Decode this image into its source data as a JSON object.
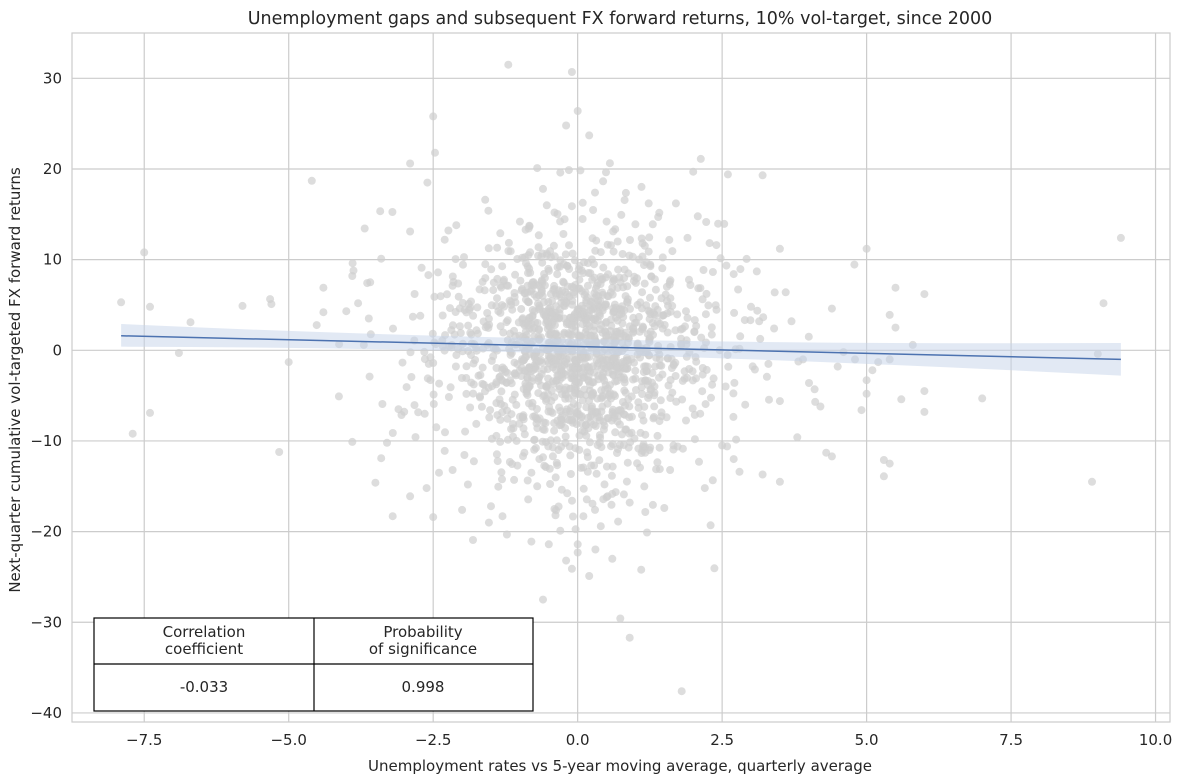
{
  "chart_data": {
    "type": "scatter",
    "title": "Unemployment gaps and subsequent FX forward returns, 10% vol-target, since 2000",
    "xlabel": "Unemployment rates vs 5-year moving average, quarterly average",
    "ylabel": "Next-quarter cumulative vol-targeted FX forward returns",
    "xlim": [
      -8.75,
      10.25
    ],
    "ylim": [
      -41,
      35
    ],
    "xticks": [
      -7.5,
      -5.0,
      -2.5,
      0.0,
      2.5,
      5.0,
      7.5,
      10.0
    ],
    "xtick_labels": [
      "−7.5",
      "−5.0",
      "−2.5",
      "0.0",
      "2.5",
      "5.0",
      "7.5",
      "10.0"
    ],
    "yticks": [
      -40,
      -30,
      -20,
      -10,
      0,
      10,
      20,
      30
    ],
    "ytick_labels": [
      "−40",
      "−30",
      "−20",
      "−10",
      "0",
      "10",
      "20",
      "30"
    ],
    "grid": true,
    "point_color": "#cfcfcf",
    "line_color": "#4c72b0",
    "band_color": "#c5d3ea",
    "regression": {
      "x_start": -7.9,
      "y_start": 1.6,
      "x_end": 9.4,
      "y_end": -1.0,
      "band_start": [
        0.4,
        2.9
      ],
      "band_end": [
        -2.8,
        0.8
      ],
      "center_x": 0.0,
      "center_halfwidth": 0.12
    },
    "points": [
      [
        -7.9,
        5.3
      ],
      [
        -7.5,
        10.8
      ],
      [
        -7.4,
        4.8
      ],
      [
        -7.7,
        -9.2
      ],
      [
        -7.4,
        -6.9
      ],
      [
        -6.9,
        -0.3
      ],
      [
        -6.7,
        3.1
      ],
      [
        -5.8,
        4.9
      ],
      [
        -5.3,
        5.1
      ],
      [
        -5.0,
        -1.3
      ],
      [
        -4.6,
        18.7
      ],
      [
        -4.4,
        6.9
      ],
      [
        -4.4,
        4.2
      ],
      [
        -3.9,
        8.2
      ],
      [
        -3.9,
        -10.1
      ],
      [
        -3.8,
        5.2
      ],
      [
        -3.7,
        0.6
      ],
      [
        -3.6,
        -2.9
      ],
      [
        -3.5,
        -14.6
      ],
      [
        -3.4,
        10.1
      ],
      [
        -3.4,
        -11.9
      ],
      [
        -3.3,
        -10.2
      ],
      [
        -3.2,
        -18.3
      ],
      [
        -3.1,
        -6.5
      ],
      [
        -2.9,
        20.6
      ],
      [
        -2.9,
        -16.1
      ],
      [
        -2.9,
        13.1
      ],
      [
        -2.6,
        18.5
      ],
      [
        -2.5,
        25.8
      ],
      [
        -2.5,
        -18.4
      ],
      [
        -2.4,
        -13.5
      ],
      [
        -2.3,
        -11.1
      ],
      [
        -2.3,
        12.2
      ],
      [
        -2.1,
        13.8
      ],
      [
        -2.0,
        -17.6
      ],
      [
        -1.9,
        -14.8
      ],
      [
        -1.6,
        16.6
      ],
      [
        -1.5,
        -17.2
      ],
      [
        -1.3,
        -18.3
      ],
      [
        -1.2,
        31.5
      ],
      [
        -1.1,
        -14.3
      ],
      [
        -1.0,
        14.2
      ],
      [
        -0.9,
        13.3
      ],
      [
        -0.8,
        -21.1
      ],
      [
        -0.8,
        -13.5
      ],
      [
        -0.7,
        20.1
      ],
      [
        -0.7,
        -15.0
      ],
      [
        -0.6,
        -27.5
      ],
      [
        -0.6,
        17.8
      ],
      [
        -0.5,
        -21.4
      ],
      [
        -0.4,
        -17.5
      ],
      [
        -0.4,
        15.2
      ],
      [
        -0.3,
        19.6
      ],
      [
        -0.3,
        -19.9
      ],
      [
        -0.2,
        24.8
      ],
      [
        -0.2,
        -23.2
      ],
      [
        -0.1,
        -24.1
      ],
      [
        -0.1,
        15.9
      ],
      [
        0.0,
        -22.3
      ],
      [
        -0.1,
        30.7
      ],
      [
        0.0,
        -21.4
      ],
      [
        0.0,
        26.4
      ],
      [
        0.1,
        -18.3
      ],
      [
        0.2,
        23.7
      ],
      [
        0.2,
        -24.9
      ],
      [
        0.3,
        -17.6
      ],
      [
        0.3,
        17.4
      ],
      [
        0.4,
        -19.4
      ],
      [
        0.5,
        -16.2
      ],
      [
        0.5,
        14.2
      ],
      [
        0.6,
        -23.0
      ],
      [
        0.7,
        -18.9
      ],
      [
        0.8,
        -15.9
      ],
      [
        0.9,
        -31.7
      ],
      [
        0.9,
        -16.8
      ],
      [
        1.0,
        13.9
      ],
      [
        1.1,
        -24.2
      ],
      [
        1.2,
        -20.1
      ],
      [
        1.3,
        13.9
      ],
      [
        1.5,
        -17.4
      ],
      [
        1.6,
        -13.2
      ],
      [
        1.7,
        16.2
      ],
      [
        1.8,
        -37.6
      ],
      [
        1.9,
        12.4
      ],
      [
        2.0,
        19.7
      ],
      [
        2.1,
        -12.3
      ],
      [
        2.2,
        -15.2
      ],
      [
        2.3,
        -19.3
      ],
      [
        2.4,
        11.6
      ],
      [
        2.5,
        -10.5
      ],
      [
        2.6,
        19.4
      ],
      [
        2.7,
        -12.0
      ],
      [
        2.7,
        8.4
      ],
      [
        2.8,
        -13.4
      ],
      [
        2.9,
        -6.0
      ],
      [
        3.0,
        4.8
      ],
      [
        3.1,
        8.7
      ],
      [
        3.2,
        19.3
      ],
      [
        3.2,
        -13.7
      ],
      [
        3.3,
        -1.5
      ],
      [
        3.4,
        2.4
      ],
      [
        3.5,
        -5.6
      ],
      [
        3.5,
        -14.5
      ],
      [
        3.5,
        11.2
      ],
      [
        3.6,
        6.4
      ],
      [
        3.7,
        3.2
      ],
      [
        3.8,
        -9.6
      ],
      [
        3.9,
        -1.0
      ],
      [
        4.0,
        1.5
      ],
      [
        4.1,
        -4.3
      ],
      [
        4.2,
        -6.2
      ],
      [
        4.3,
        -11.3
      ],
      [
        4.4,
        -11.7
      ],
      [
        4.4,
        4.6
      ],
      [
        4.5,
        -1.8
      ],
      [
        4.6,
        -0.2
      ],
      [
        4.8,
        -1.0
      ],
      [
        5.0,
        -4.8
      ],
      [
        5.0,
        11.2
      ],
      [
        5.0,
        -3.3
      ],
      [
        5.1,
        -2.2
      ],
      [
        5.2,
        -1.3
      ],
      [
        5.3,
        -13.9
      ],
      [
        5.3,
        -12.1
      ],
      [
        5.4,
        -12.5
      ],
      [
        5.4,
        3.9
      ],
      [
        5.4,
        -1.0
      ],
      [
        5.5,
        2.5
      ],
      [
        5.5,
        6.9
      ],
      [
        5.6,
        -5.4
      ],
      [
        5.8,
        0.6
      ],
      [
        6.0,
        -6.8
      ],
      [
        6.0,
        -4.5
      ],
      [
        6.0,
        6.2
      ],
      [
        7.0,
        -5.3
      ],
      [
        8.9,
        -14.5
      ],
      [
        9.0,
        -0.4
      ],
      [
        9.1,
        5.2
      ],
      [
        9.4,
        12.4
      ]
    ]
  },
  "stats_table": {
    "headers": [
      "Correlation\ncoefficient",
      "Probability\nof significance"
    ],
    "values": [
      "-0.033",
      "0.998"
    ]
  }
}
